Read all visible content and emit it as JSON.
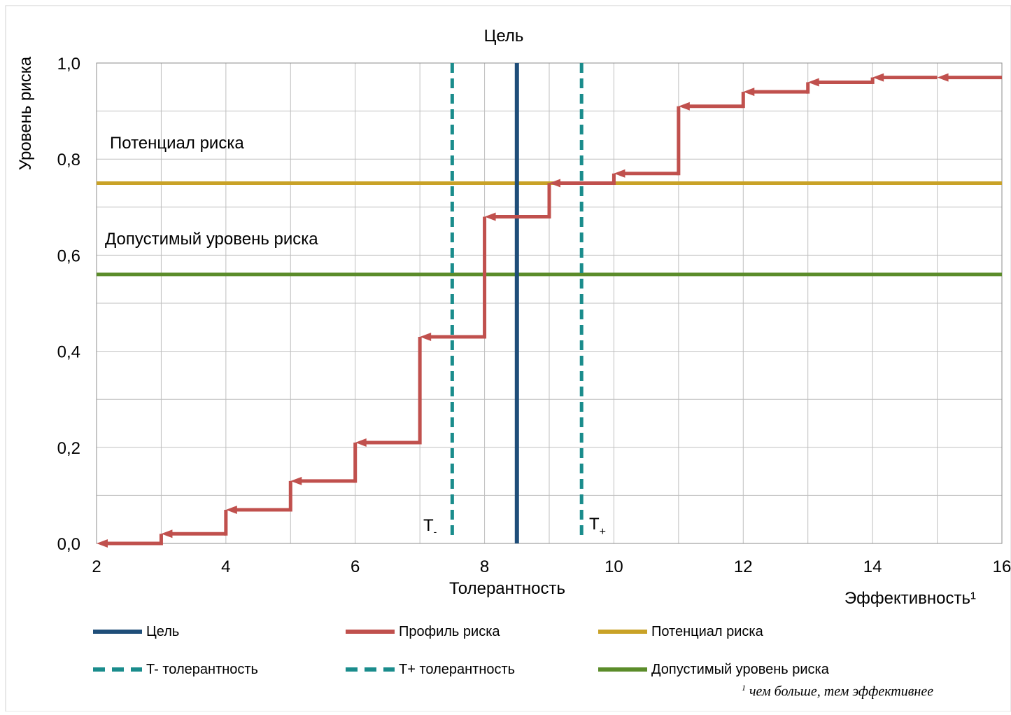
{
  "chart_data": {
    "type": "line",
    "title": "Цель",
    "xlabel": "Толерантность",
    "xlabel_secondary": "Эффективность¹",
    "ylabel": "Уровень риска",
    "xlim": [
      2,
      16
    ],
    "ylim": [
      0,
      1.0
    ],
    "x_ticks": [
      "2",
      "4",
      "6",
      "8",
      "10",
      "12",
      "14",
      "16"
    ],
    "x_tick_values": [
      2,
      4,
      6,
      8,
      10,
      12,
      14,
      16
    ],
    "y_ticks": [
      "0,0",
      "0,2",
      "0,4",
      "0,6",
      "0,8",
      "1,0"
    ],
    "y_tick_values": [
      0,
      0.2,
      0.4,
      0.6,
      0.8,
      1.0
    ],
    "grid": true,
    "legend_position": "bottom",
    "series": [
      {
        "name": "Цель",
        "kind": "vertical",
        "x": 8.5,
        "color": "#1f4e79",
        "style": "solid"
      },
      {
        "name": "Профиль риска",
        "kind": "step",
        "color": "#c0504d",
        "style": "solid",
        "x": [
          2,
          3,
          4,
          5,
          6,
          7,
          8,
          9,
          10,
          11,
          12,
          13,
          14,
          15,
          16
        ],
        "y": [
          0.0,
          0.02,
          0.07,
          0.13,
          0.21,
          0.43,
          0.68,
          0.75,
          0.77,
          0.91,
          0.94,
          0.96,
          0.97,
          0.97,
          0.97
        ]
      },
      {
        "name": "Потенциал риска",
        "kind": "horizontal",
        "y": 0.75,
        "color": "#c9a227",
        "style": "solid"
      },
      {
        "name": "T-  толерантность",
        "kind": "vertical",
        "x": 7.5,
        "color": "#1a8c8c",
        "style": "dashed"
      },
      {
        "name": "T+ толерантность",
        "kind": "vertical",
        "x": 9.5,
        "color": "#1a8c8c",
        "style": "dashed"
      },
      {
        "name": "Допустимый уровень риска",
        "kind": "horizontal",
        "y": 0.56,
        "color": "#5b8c2a",
        "style": "solid"
      }
    ],
    "annotations": {
      "potential": "Потенциал риска",
      "acceptable": "Допустимый уровень риска",
      "t_minus_base": "T",
      "t_minus_sub": "-",
      "t_plus_base": "T",
      "t_plus_sub": "+"
    }
  },
  "legend": [
    {
      "label": "Цель",
      "color": "#1f4e79",
      "style": "solid"
    },
    {
      "label": "Профиль риска",
      "color": "#c0504d",
      "style": "solid"
    },
    {
      "label": "Потенциал риска",
      "color": "#c9a227",
      "style": "solid"
    },
    {
      "label": "T-  толерантность",
      "color": "#1a8c8c",
      "style": "dashed"
    },
    {
      "label": "T+ толерантность",
      "color": "#1a8c8c",
      "style": "dashed"
    },
    {
      "label": "Допустимый уровень риска",
      "color": "#5b8c2a",
      "style": "solid"
    }
  ],
  "footnote": {
    "marker": "1",
    "text": "чем больше, тем эффективнее"
  }
}
